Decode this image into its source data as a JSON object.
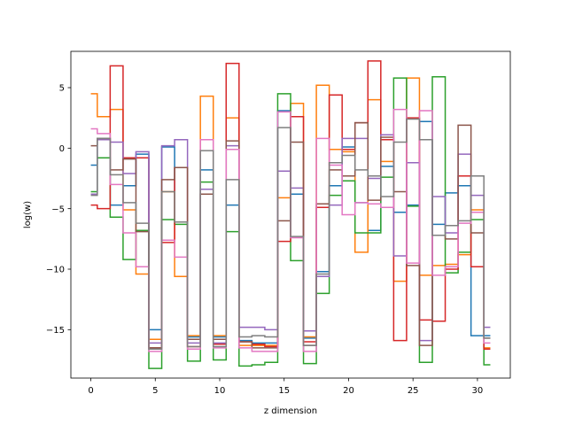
{
  "chart_data": {
    "type": "line",
    "style": "step",
    "xlabel": "z dimension",
    "ylabel": "log(w)",
    "xlim": [
      -1.55,
      32.55
    ],
    "ylim": [
      -19.0,
      8.0
    ],
    "xticks": [
      0,
      5,
      10,
      15,
      20,
      25,
      30
    ],
    "yticks": [
      -15,
      -10,
      -5,
      0,
      5
    ],
    "x": [
      0,
      1,
      2,
      3,
      4,
      5,
      6,
      7,
      8,
      9,
      10,
      11,
      12,
      13,
      14,
      15,
      16,
      17,
      18,
      19,
      20,
      21,
      22,
      23,
      24,
      25,
      26,
      27,
      28,
      29,
      30,
      31
    ],
    "series": [
      {
        "color": "#1f77b4",
        "values": [
          -1.4,
          0.8,
          -4.7,
          -3.1,
          -0.5,
          -15.0,
          0.1,
          -6.1,
          -15.6,
          -1.8,
          -15.6,
          -4.7,
          -15.9,
          -16.1,
          -16.1,
          3.1,
          -3.8,
          -15.7,
          -10.2,
          -3.1,
          0.1,
          -4.5,
          -6.8,
          -1.5,
          -5.3,
          -4.7,
          2.2,
          -6.3,
          -3.7,
          -3.1,
          -15.5,
          -15.5
        ]
      },
      {
        "color": "#ff7f0e",
        "values": [
          4.5,
          2.6,
          3.2,
          -5.1,
          -10.4,
          -15.8,
          -3.6,
          -10.6,
          -15.5,
          4.3,
          -15.5,
          2.5,
          -16.3,
          -16.3,
          -16.3,
          -4.1,
          3.7,
          -15.6,
          5.2,
          -0.1,
          -0.3,
          -8.6,
          4.0,
          -1.1,
          -11.0,
          5.8,
          -10.5,
          -9.7,
          -9.6,
          -8.8,
          -5.1,
          -16.5
        ]
      },
      {
        "color": "#2ca02c",
        "values": [
          -3.6,
          -0.8,
          -5.7,
          -9.2,
          -6.8,
          -18.2,
          -5.9,
          -6.3,
          -17.6,
          -2.8,
          -17.5,
          -6.9,
          -18.0,
          -17.9,
          -17.7,
          4.5,
          -9.3,
          -17.8,
          -12.0,
          -3.9,
          -2.7,
          -7.0,
          -7.0,
          -2.4,
          5.8,
          -4.8,
          -17.7,
          5.9,
          -10.3,
          -8.6,
          -5.9,
          -17.9
        ]
      },
      {
        "color": "#d62728",
        "values": [
          -4.7,
          -5.0,
          6.8,
          -0.8,
          -0.8,
          -16.5,
          -7.8,
          -1.6,
          -16.4,
          -3.8,
          -16.2,
          7.0,
          -16.0,
          -16.2,
          -16.4,
          -7.7,
          2.6,
          -16.0,
          -4.9,
          4.4,
          -0.1,
          2.1,
          7.2,
          0.7,
          -15.9,
          2.5,
          -14.2,
          -14.3,
          -10.0,
          -2.3,
          -9.8,
          -16.6
        ]
      },
      {
        "color": "#9467bd",
        "values": [
          -3.8,
          0.7,
          0.5,
          -2.1,
          -0.3,
          -16.1,
          0.2,
          0.7,
          -16.1,
          -3.4,
          -16.1,
          0.2,
          -14.8,
          -14.8,
          -15.0,
          -1.9,
          -3.3,
          -15.1,
          -10.6,
          -4.7,
          0.8,
          0.8,
          -2.5,
          1.1,
          -8.9,
          -1.2,
          -15.9,
          -4.0,
          -7.0,
          -0.5,
          -3.9,
          -14.8
        ]
      },
      {
        "color": "#8c564b",
        "values": [
          0.2,
          0.8,
          -1.8,
          -0.9,
          -6.9,
          -16.5,
          -2.6,
          -1.6,
          -15.8,
          -3.8,
          -15.8,
          0.6,
          -16.0,
          -16.5,
          -16.5,
          -6.0,
          0.5,
          -16.3,
          -4.6,
          -1.8,
          -2.3,
          2.1,
          -4.3,
          0.9,
          -3.6,
          -9.7,
          -16.3,
          -7.2,
          -7.5,
          1.9,
          -7.0,
          -15.7
        ]
      },
      {
        "color": "#e377c2",
        "values": [
          1.6,
          1.2,
          -3.0,
          -7.0,
          -9.8,
          -16.8,
          -7.6,
          -9.0,
          -16.6,
          0.7,
          -16.5,
          -0.1,
          -16.5,
          -16.8,
          -16.8,
          3.0,
          -7.4,
          -16.8,
          0.8,
          -1.4,
          -5.5,
          -4.5,
          -4.6,
          -4.9,
          3.2,
          -9.5,
          3.1,
          -10.5,
          -9.8,
          -6.2,
          -5.3,
          -16.1
        ]
      },
      {
        "color": "#7f7f7f",
        "values": [
          -3.9,
          0.8,
          -2.2,
          -4.5,
          -6.2,
          -16.6,
          -3.6,
          -6.1,
          -16.4,
          -0.2,
          -16.4,
          -2.6,
          -15.6,
          -15.5,
          -15.6,
          1.7,
          -7.3,
          -16.3,
          -10.4,
          -1.2,
          -0.6,
          -1.8,
          -2.3,
          -4.0,
          0.5,
          2.4,
          0.7,
          -7.2,
          -6.4,
          -6.0,
          -2.3,
          -15.7
        ]
      }
    ]
  }
}
